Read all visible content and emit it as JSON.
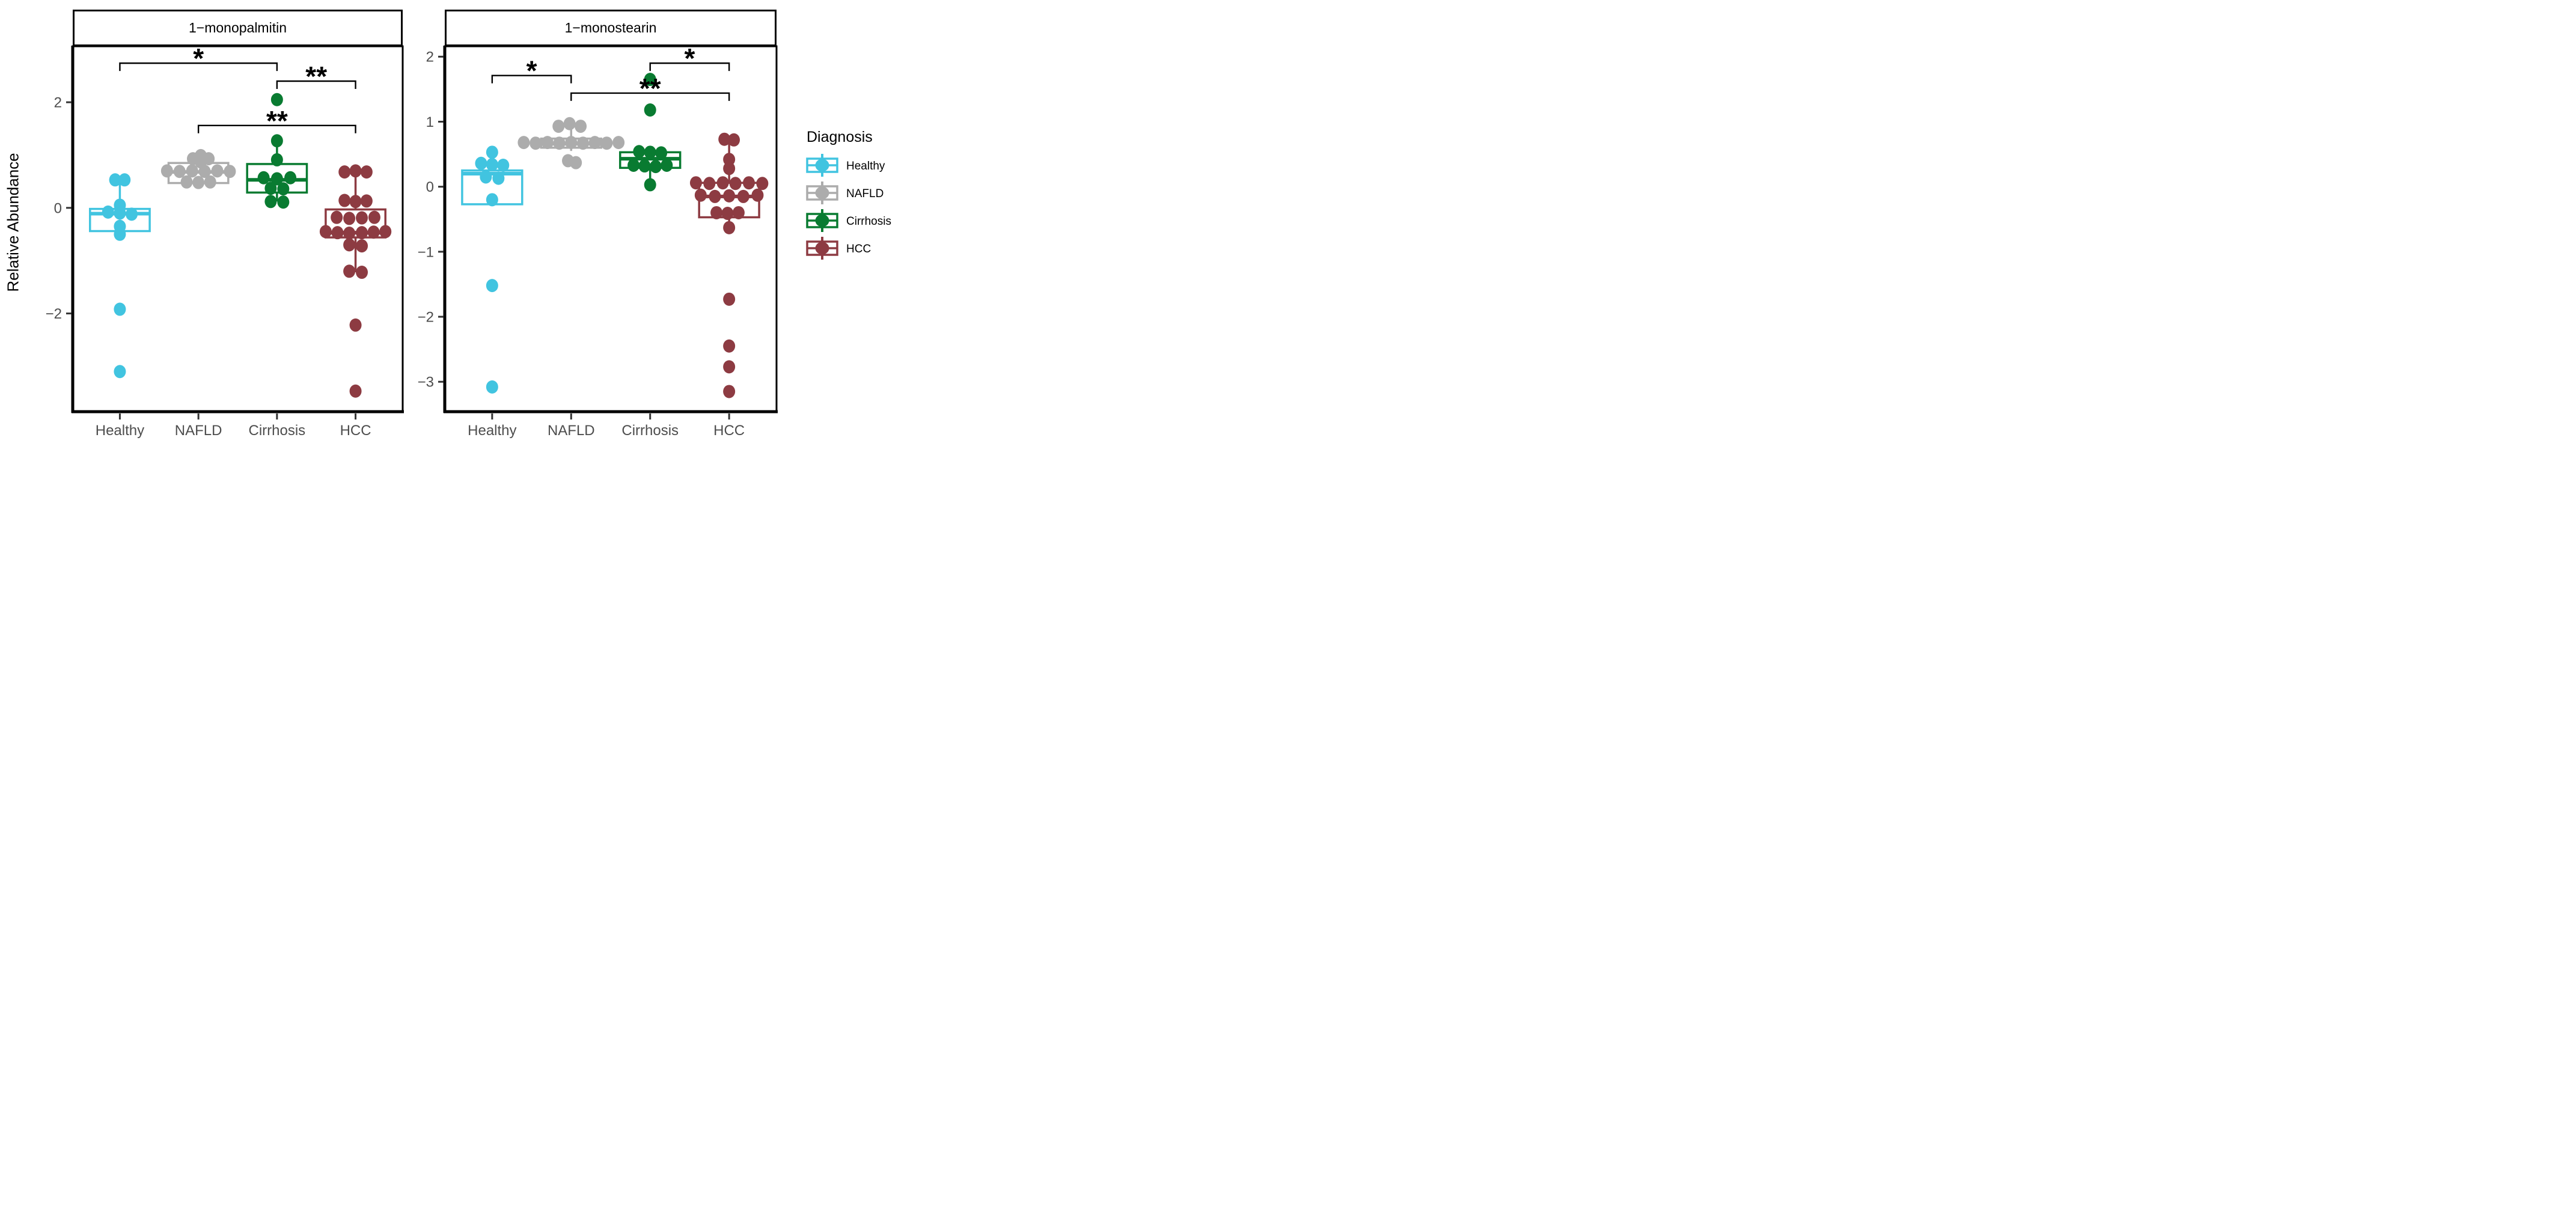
{
  "chart_data": [
    {
      "type": "boxplot",
      "title": "1−monopalmitin",
      "xlabel": "",
      "ylabel": "Relative Abundance",
      "categories": [
        "Healthy",
        "NAFLD",
        "Cirrhosis",
        "HCC"
      ],
      "yticks": [
        2,
        0,
        -2
      ],
      "ylim": [
        -3.86,
        3.06
      ],
      "grid": false,
      "legend_position": "right",
      "series": [
        {
          "name": "Healthy",
          "box": {
            "q1": -0.44,
            "median": -0.11,
            "q3": -0.02,
            "whisker_low": -0.44,
            "whisker_high": 0.53
          },
          "points": [
            [
              -0.06,
              0.53
            ],
            [
              0.06,
              0.53
            ],
            [
              0,
              0.05
            ],
            [
              -0.15,
              -0.08
            ],
            [
              0,
              -0.1
            ],
            [
              0.15,
              -0.12
            ],
            [
              0,
              -0.35
            ],
            [
              0,
              -0.5
            ],
            [
              0,
              -1.92
            ],
            [
              0,
              -3.1
            ]
          ]
        },
        {
          "name": "NAFLD",
          "box": {
            "q1": 0.47,
            "median": 0.68,
            "q3": 0.85,
            "whisker_low": 0.44,
            "whisker_high": 1.0
          },
          "points": [
            [
              -0.07,
              0.93
            ],
            [
              0.03,
              0.99
            ],
            [
              0.13,
              0.93
            ],
            [
              0.03,
              0.87
            ],
            [
              -0.4,
              0.7
            ],
            [
              -0.24,
              0.69
            ],
            [
              -0.08,
              0.7
            ],
            [
              0.08,
              0.69
            ],
            [
              0.24,
              0.7
            ],
            [
              0.4,
              0.69
            ],
            [
              -0.15,
              0.49
            ],
            [
              0,
              0.48
            ],
            [
              0.15,
              0.49
            ]
          ]
        },
        {
          "name": "Cirrhosis",
          "box": {
            "q1": 0.29,
            "median": 0.53,
            "q3": 0.83,
            "whisker_low": 0.12,
            "whisker_high": 1.27
          },
          "points": [
            [
              0,
              2.05
            ],
            [
              0,
              1.27
            ],
            [
              0,
              0.91
            ],
            [
              -0.17,
              0.57
            ],
            [
              0,
              0.55
            ],
            [
              0.17,
              0.57
            ],
            [
              -0.08,
              0.37
            ],
            [
              0.08,
              0.36
            ],
            [
              -0.08,
              0.12
            ],
            [
              0.08,
              0.11
            ]
          ]
        },
        {
          "name": "HCC",
          "box": {
            "q1": -0.56,
            "median": -0.47,
            "q3": -0.03,
            "whisker_low": -1.22,
            "whisker_high": 0.65
          },
          "points": [
            [
              -0.14,
              0.68
            ],
            [
              0,
              0.7
            ],
            [
              0.14,
              0.68
            ],
            [
              -0.14,
              0.14
            ],
            [
              0,
              0.12
            ],
            [
              0.14,
              0.13
            ],
            [
              -0.24,
              -0.18
            ],
            [
              -0.08,
              -0.2
            ],
            [
              0.08,
              -0.19
            ],
            [
              0.24,
              -0.18
            ],
            [
              -0.38,
              -0.45
            ],
            [
              -0.23,
              -0.47
            ],
            [
              -0.08,
              -0.48
            ],
            [
              0.08,
              -0.47
            ],
            [
              0.23,
              -0.46
            ],
            [
              0.38,
              -0.45
            ],
            [
              -0.08,
              -0.7
            ],
            [
              0.08,
              -0.72
            ],
            [
              -0.08,
              -1.2
            ],
            [
              0.08,
              -1.22
            ],
            [
              0,
              -2.22
            ],
            [
              0,
              -3.47
            ]
          ]
        }
      ],
      "significance": [
        {
          "from": "Healthy",
          "to": "Cirrhosis",
          "y": 2.74,
          "label": "*"
        },
        {
          "from": "Cirrhosis",
          "to": "HCC",
          "y": 2.4,
          "label": "**"
        },
        {
          "from": "NAFLD",
          "to": "HCC",
          "y": 1.56,
          "label": "**"
        }
      ]
    },
    {
      "type": "boxplot",
      "title": "1−monostearin",
      "xlabel": "",
      "ylabel": "Relative Abundance",
      "categories": [
        "Healthy",
        "NAFLD",
        "Cirrhosis",
        "HCC"
      ],
      "yticks": [
        2,
        1,
        0,
        -1,
        -2,
        -3
      ],
      "ylim": [
        -3.46,
        2.16
      ],
      "grid": false,
      "legend_position": "right",
      "series": [
        {
          "name": "Healthy",
          "box": {
            "q1": -0.27,
            "median": 0.2,
            "q3": 0.25,
            "whisker_low": -0.27,
            "whisker_high": 0.53
          },
          "points": [
            [
              0,
              0.53
            ],
            [
              -0.14,
              0.36
            ],
            [
              0,
              0.34
            ],
            [
              0.14,
              0.33
            ],
            [
              -0.08,
              0.15
            ],
            [
              0.08,
              0.13
            ],
            [
              0,
              -0.2
            ],
            [
              0,
              -1.52
            ],
            [
              0,
              -3.08
            ]
          ]
        },
        {
          "name": "NAFLD",
          "box": {
            "q1": 0.6,
            "median": 0.66,
            "q3": 0.74,
            "whisker_low": 0.55,
            "whisker_high": 0.9
          },
          "points": [
            [
              -0.16,
              0.93
            ],
            [
              -0.02,
              0.97
            ],
            [
              0.12,
              0.93
            ],
            [
              -0.6,
              0.68
            ],
            [
              -0.45,
              0.67
            ],
            [
              -0.3,
              0.68
            ],
            [
              -0.15,
              0.67
            ],
            [
              0,
              0.68
            ],
            [
              0.15,
              0.67
            ],
            [
              0.3,
              0.68
            ],
            [
              0.45,
              0.67
            ],
            [
              0.6,
              0.68
            ],
            [
              -0.04,
              0.4
            ],
            [
              0.06,
              0.37
            ]
          ]
        },
        {
          "name": "Cirrhosis",
          "box": {
            "q1": 0.29,
            "median": 0.43,
            "q3": 0.53,
            "whisker_low": 0.03,
            "whisker_high": 0.53
          },
          "points": [
            [
              0,
              1.65
            ],
            [
              0,
              1.18
            ],
            [
              -0.14,
              0.54
            ],
            [
              0,
              0.53
            ],
            [
              0.14,
              0.52
            ],
            [
              -0.21,
              0.33
            ],
            [
              -0.07,
              0.32
            ],
            [
              0.07,
              0.31
            ],
            [
              0.21,
              0.33
            ],
            [
              0,
              0.03
            ]
          ]
        },
        {
          "name": "HCC",
          "box": {
            "q1": -0.47,
            "median": -0.15,
            "q3": 0.06,
            "whisker_low": -0.63,
            "whisker_high": 0.72
          },
          "points": [
            [
              -0.06,
              0.73
            ],
            [
              0.06,
              0.72
            ],
            [
              0,
              0.42
            ],
            [
              0,
              0.28
            ],
            [
              -0.42,
              0.06
            ],
            [
              -0.25,
              0.05
            ],
            [
              -0.08,
              0.06
            ],
            [
              0.08,
              0.05
            ],
            [
              0.25,
              0.06
            ],
            [
              0.42,
              0.05
            ],
            [
              -0.36,
              -0.13
            ],
            [
              -0.18,
              -0.15
            ],
            [
              0,
              -0.14
            ],
            [
              0.18,
              -0.15
            ],
            [
              0.36,
              -0.13
            ],
            [
              -0.16,
              -0.4
            ],
            [
              -0.02,
              -0.41
            ],
            [
              0.12,
              -0.4
            ],
            [
              0,
              -0.63
            ],
            [
              0,
              -1.73
            ],
            [
              0,
              -2.45
            ],
            [
              0,
              -2.77
            ],
            [
              0,
              -3.15
            ]
          ]
        }
      ],
      "significance": [
        {
          "from": "Cirrhosis",
          "to": "HCC",
          "y": 1.9,
          "label": "*"
        },
        {
          "from": "Healthy",
          "to": "NAFLD",
          "y": 1.71,
          "label": "*"
        },
        {
          "from": "NAFLD",
          "to": "HCC",
          "y": 1.44,
          "label": "**"
        }
      ]
    }
  ],
  "legend": {
    "title": "Diagnosis",
    "entries": [
      {
        "label": "Healthy",
        "color": "#41c4e0"
      },
      {
        "label": "NAFLD",
        "color": "#acacac"
      },
      {
        "label": "Cirrhosis",
        "color": "#097b31"
      },
      {
        "label": "HCC",
        "color": "#8d3b42"
      }
    ]
  },
  "style": {
    "tick_label_color": "#4d4d4d",
    "tick_mark_color": "#333333",
    "axis_line_color": "#000000",
    "panel_background": "#ffffff"
  }
}
